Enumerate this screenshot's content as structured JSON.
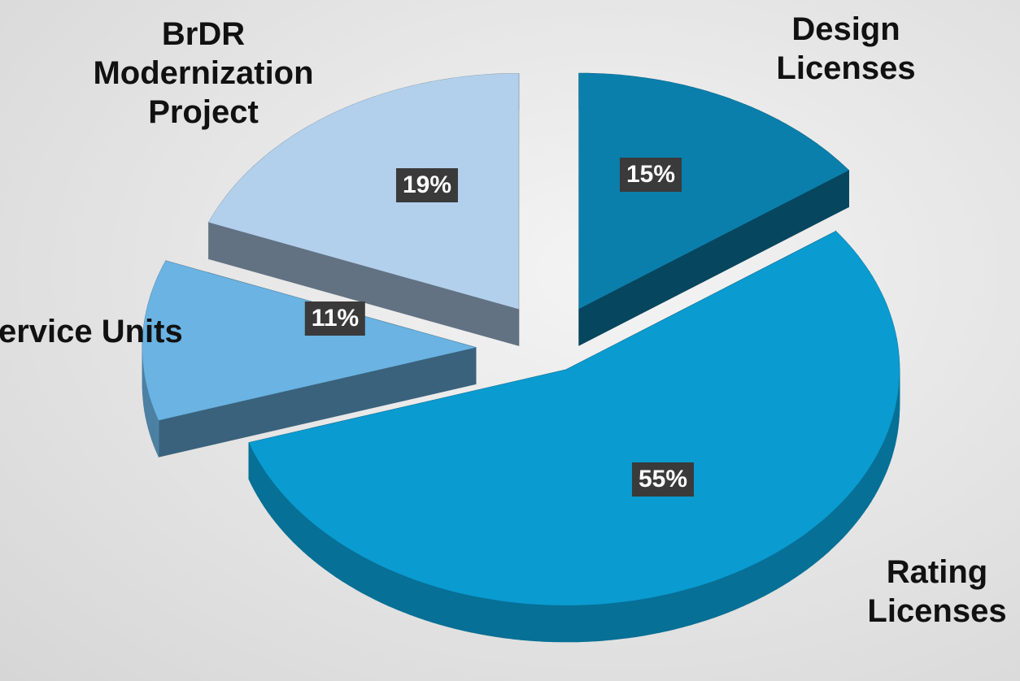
{
  "chart_data": {
    "type": "pie",
    "categories": [
      "Design Licenses",
      "Rating Licenses",
      "Service Units",
      "BrDR Modernization Project"
    ],
    "values": [
      15,
      55,
      11,
      19
    ],
    "value_labels": [
      "15%",
      "55%",
      "11%",
      "19%"
    ],
    "colors": [
      "#0b7fab",
      "#0a9bd0",
      "#6ab3e2",
      "#b2d0ec"
    ]
  }
}
